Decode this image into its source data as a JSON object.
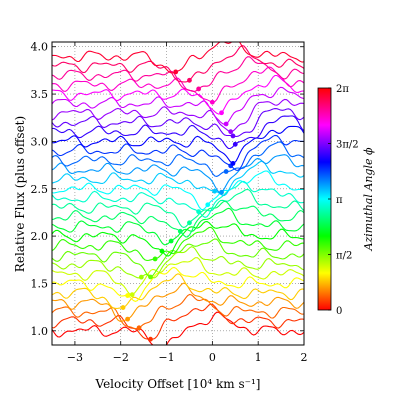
{
  "chart_data": {
    "type": "line",
    "xlabel": "Velocity Offset [10⁴ km s⁻¹]",
    "ylabel": "Relative Flux (plus offset)",
    "xlim": [
      -3.5,
      2.0
    ],
    "ylim": [
      0.85,
      4.05
    ],
    "xticks": [
      -3,
      -2,
      -1,
      0,
      1,
      2
    ],
    "xtick_labels": [
      "−3",
      "−2",
      "−1",
      "0",
      "1",
      "2"
    ],
    "yticks": [
      1.0,
      1.5,
      2.0,
      2.5,
      3.0,
      3.5,
      4.0
    ],
    "ytick_labels": [
      "1.0",
      "1.5",
      "2.0",
      "2.5",
      "3.0",
      "3.5",
      "4.0"
    ],
    "grid": true,
    "grid_style": "dotted",
    "n_spectra": 30,
    "offset_start": 1.0,
    "offset_step": 0.1,
    "absorption_minimum_velocity": [
      -1.05,
      -1.35,
      -1.6,
      -1.85,
      -1.95,
      -1.85,
      -1.75,
      -1.55,
      -1.35,
      -1.25,
      -1.1,
      -0.9,
      -0.7,
      -0.5,
      -0.3,
      -0.1,
      0.05,
      0.2,
      0.3,
      0.4,
      0.45,
      0.5,
      0.45,
      0.4,
      0.3,
      0.2,
      0.0,
      -0.3,
      -0.5,
      -0.8
    ],
    "colorbar": {
      "label": "Azimuthal Angle ϕ",
      "colormap": "hsv",
      "range": [
        0,
        6.2832
      ],
      "ticks": [
        0,
        1.5708,
        3.1416,
        4.7124,
        6.2832
      ],
      "tick_labels": [
        "0",
        "π/2",
        "π",
        "3π/2",
        "2π"
      ]
    }
  }
}
